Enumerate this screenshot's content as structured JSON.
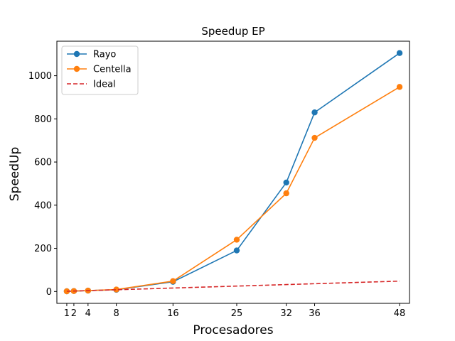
{
  "chart_data": {
    "type": "line",
    "title": "Speedup EP",
    "xlabel": "Procesadores",
    "ylabel": "SpeedUp",
    "xlim": [
      -0.4,
      49.4
    ],
    "ylim": [
      -55,
      1160
    ],
    "x_ticks": [
      1,
      2,
      4,
      8,
      16,
      25,
      32,
      36,
      48
    ],
    "y_ticks": [
      0,
      200,
      400,
      600,
      800,
      1000
    ],
    "grid": false,
    "legend_position": "top-left",
    "series": [
      {
        "name": "Rayo",
        "color": "#1f77b4",
        "style": "solid",
        "marker": "circle",
        "x": [
          1,
          2,
          4,
          8,
          16,
          25,
          32,
          36,
          48
        ],
        "y": [
          1,
          2,
          4,
          8,
          45,
          190,
          505,
          830,
          1105
        ]
      },
      {
        "name": "Centella",
        "color": "#ff7f0e",
        "style": "solid",
        "marker": "circle",
        "x": [
          1,
          2,
          4,
          8,
          16,
          25,
          32,
          36,
          48
        ],
        "y": [
          1,
          2,
          4,
          9,
          48,
          240,
          455,
          712,
          948
        ]
      },
      {
        "name": "Ideal",
        "color": "#d62728",
        "style": "dashed",
        "marker": "none",
        "x": [
          1,
          2,
          4,
          8,
          16,
          25,
          32,
          36,
          48
        ],
        "y": [
          1,
          2,
          4,
          8,
          16,
          25,
          32,
          36,
          48
        ]
      }
    ]
  }
}
